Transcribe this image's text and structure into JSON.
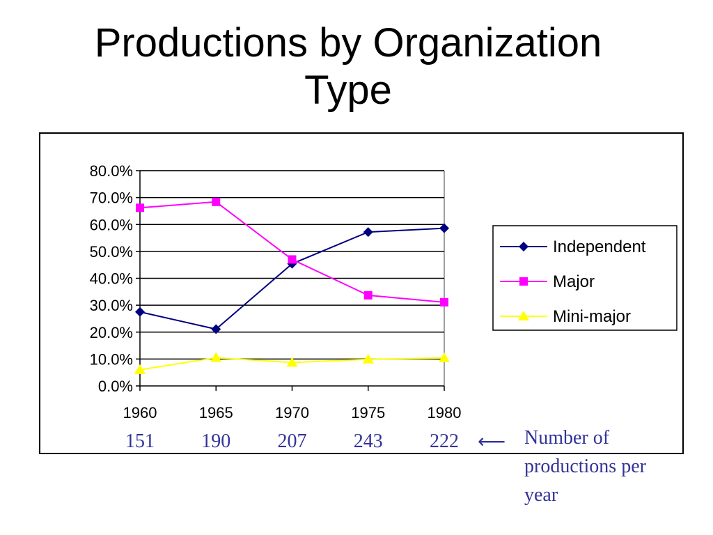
{
  "slide": {
    "title_line1": "Productions by Organization",
    "title_line2": "Type",
    "note": "Number of productions per year",
    "arrow_icon": "left-arrow"
  },
  "colors": {
    "Independent": "#000080",
    "Major": "#FF00FF",
    "Mini-major": "#FFFF00",
    "counts": "#333399"
  },
  "chart_data": {
    "type": "line",
    "title": "",
    "xlabel": "",
    "ylabel": "",
    "categories": [
      "1960",
      "1965",
      "1970",
      "1975",
      "1980"
    ],
    "category_counts": [
      "151",
      "190",
      "207",
      "243",
      "222"
    ],
    "ylim": [
      0,
      80
    ],
    "y_ticks": [
      "0.0%",
      "10.0%",
      "20.0%",
      "30.0%",
      "40.0%",
      "50.0%",
      "60.0%",
      "70.0%",
      "80.0%"
    ],
    "grid": true,
    "legend_position": "right",
    "series": [
      {
        "name": "Independent",
        "marker": "diamond",
        "values": [
          27.5,
          21.1,
          45.4,
          57.2,
          58.6
        ]
      },
      {
        "name": "Major",
        "marker": "square",
        "values": [
          66.2,
          68.4,
          47.0,
          33.7,
          31.1
        ]
      },
      {
        "name": "Mini-major",
        "marker": "triangle",
        "values": [
          6.0,
          10.5,
          8.7,
          9.9,
          10.4
        ]
      }
    ]
  }
}
